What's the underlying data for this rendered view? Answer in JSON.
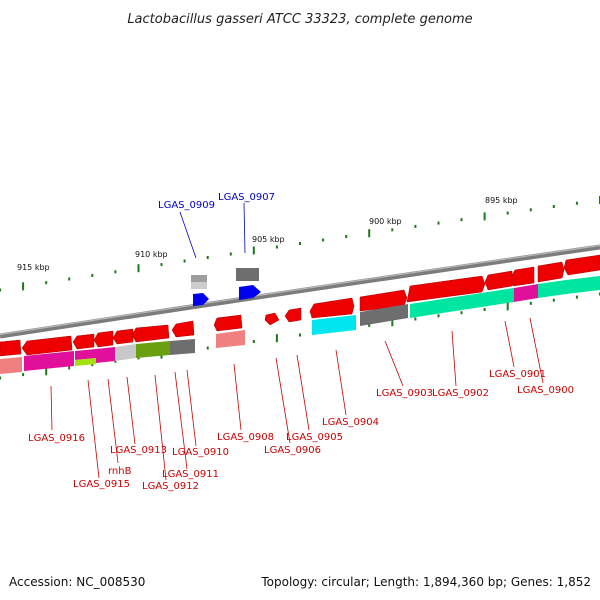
{
  "title": "Lactobacillus gasseri ATCC 33323, complete genome",
  "footer": {
    "accession": "Accession: NC_008530",
    "summary": "Topology: circular; Length: 1,894,360 bp; Genes: 1,852"
  },
  "colors": {
    "forward_gene": "#ee0000",
    "reverse_gene": "#ee0000",
    "label_red": "#cc0000",
    "label_blue": "#0000cc",
    "backbone": "#888888",
    "tick": "#1a7a1a",
    "rna_blue": "#0000ee",
    "cyan": "#00e5ee",
    "green": "#00e5a0",
    "magenta": "#e0109a",
    "grey": "#6e6e6e",
    "olive": "#6aa010"
  },
  "ticks": [
    {
      "label": "915 kbp"
    },
    {
      "label": "910 kbp"
    },
    {
      "label": "905 kbp"
    },
    {
      "label": "900 kbp"
    },
    {
      "label": "895 kbp"
    }
  ],
  "genes": [
    {
      "id": "g0916",
      "label": "LGAS_0916",
      "color": "red"
    },
    {
      "id": "g0915",
      "label": "LGAS_0915",
      "color": "red"
    },
    {
      "id": "grnhB",
      "label": "rnhB",
      "color": "red"
    },
    {
      "id": "g0913",
      "label": "LGAS_0913",
      "color": "red"
    },
    {
      "id": "g0912",
      "label": "LGAS_0912",
      "color": "red"
    },
    {
      "id": "g0911",
      "label": "LGAS_0911",
      "color": "red"
    },
    {
      "id": "g0910",
      "label": "LGAS_0910",
      "color": "red"
    },
    {
      "id": "g0909",
      "label": "LGAS_0909",
      "color": "blue"
    },
    {
      "id": "g0908",
      "label": "LGAS_0908",
      "color": "red"
    },
    {
      "id": "g0907",
      "label": "LGAS_0907",
      "color": "blue"
    },
    {
      "id": "g0906",
      "label": "LGAS_0906",
      "color": "red"
    },
    {
      "id": "g0905",
      "label": "LGAS_0905",
      "color": "red"
    },
    {
      "id": "g0904",
      "label": "LGAS_0904",
      "color": "red"
    },
    {
      "id": "g0903",
      "label": "LGAS_0903",
      "color": "red"
    },
    {
      "id": "g0902",
      "label": "LGAS_0902",
      "color": "red"
    },
    {
      "id": "g0901",
      "label": "LGAS_0901",
      "color": "red"
    },
    {
      "id": "g0900",
      "label": "LGAS_0900",
      "color": "red"
    }
  ]
}
